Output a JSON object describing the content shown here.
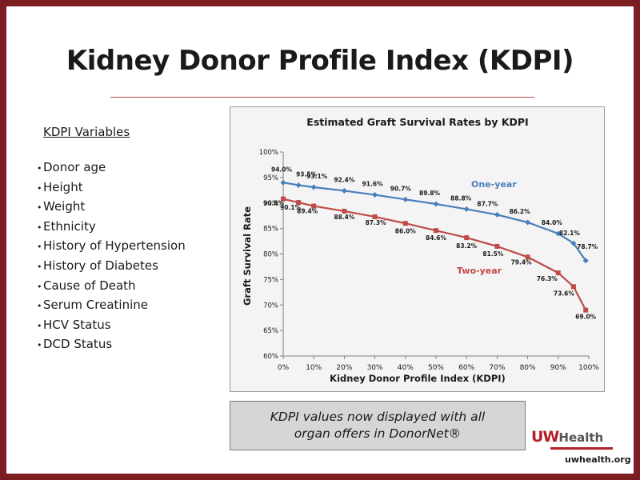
{
  "slide": {
    "title": "Kidney Donor Profile Index (KDPI)",
    "variables_heading": "KDPI Variables",
    "variables": [
      "Donor age",
      "Height",
      "Weight",
      "Ethnicity",
      "History of Hypertension",
      "History of Diabetes",
      "Cause of Death",
      "Serum Creatinine",
      "HCV Status",
      "DCD Status"
    ],
    "bullet": "•",
    "callout_lines": [
      "KDPI values now displayed with all",
      "organ offers in DonorNet®"
    ],
    "logo": {
      "uw": "UW",
      "health": "Health",
      "url": "uwhealth.org"
    }
  },
  "colors": {
    "frame": "#7c1d22",
    "one_year": "#4a7ebb",
    "two_year": "#be4b48",
    "accent": "#b32025"
  },
  "chart_data": {
    "type": "line",
    "title": "Estimated Graft Survival Rates by KDPI",
    "xlabel": "Kidney Donor Profile Index (KDPI)",
    "ylabel": "Graft Survival Rate",
    "x_ticks": [
      "0%",
      "10%",
      "20%",
      "30%",
      "40%",
      "50%",
      "60%",
      "70%",
      "80%",
      "90%",
      "100%"
    ],
    "y_ticks": [
      "60%",
      "65%",
      "70%",
      "75%",
      "80%",
      "85%",
      "90%",
      "95%",
      "100%"
    ],
    "xlim": [
      0,
      100
    ],
    "ylim": [
      60,
      100
    ],
    "grid": false,
    "series": [
      {
        "name": "One-year",
        "x": [
          0,
          5,
          10,
          20,
          30,
          40,
          50,
          60,
          70,
          80,
          90,
          95,
          99
        ],
        "values": [
          94.0,
          93.5,
          93.1,
          92.4,
          91.6,
          90.7,
          89.8,
          88.8,
          87.7,
          86.2,
          84.0,
          82.1,
          78.7
        ],
        "labels": [
          "94.0%",
          "93.5%",
          "93.1%",
          "92.4%",
          "91.6%",
          "90.7%",
          "89.8%",
          "88.8%",
          "87.7%",
          "86.2%",
          "84.0%",
          "82.1%",
          "78.7%"
        ]
      },
      {
        "name": "Two-year",
        "x": [
          0,
          5,
          10,
          20,
          30,
          40,
          50,
          60,
          70,
          80,
          90,
          95,
          99
        ],
        "values": [
          90.8,
          90.1,
          89.4,
          88.4,
          87.3,
          86.0,
          84.6,
          83.2,
          81.5,
          79.4,
          76.3,
          73.6,
          69.0
        ],
        "labels": [
          "90.8%",
          "90.1%",
          "89.4%",
          "88.4%",
          "87.3%",
          "86.0%",
          "84.6%",
          "83.2%",
          "81.5%",
          "79.4%",
          "76.3%",
          "73.6%",
          "69.0%"
        ]
      }
    ]
  }
}
